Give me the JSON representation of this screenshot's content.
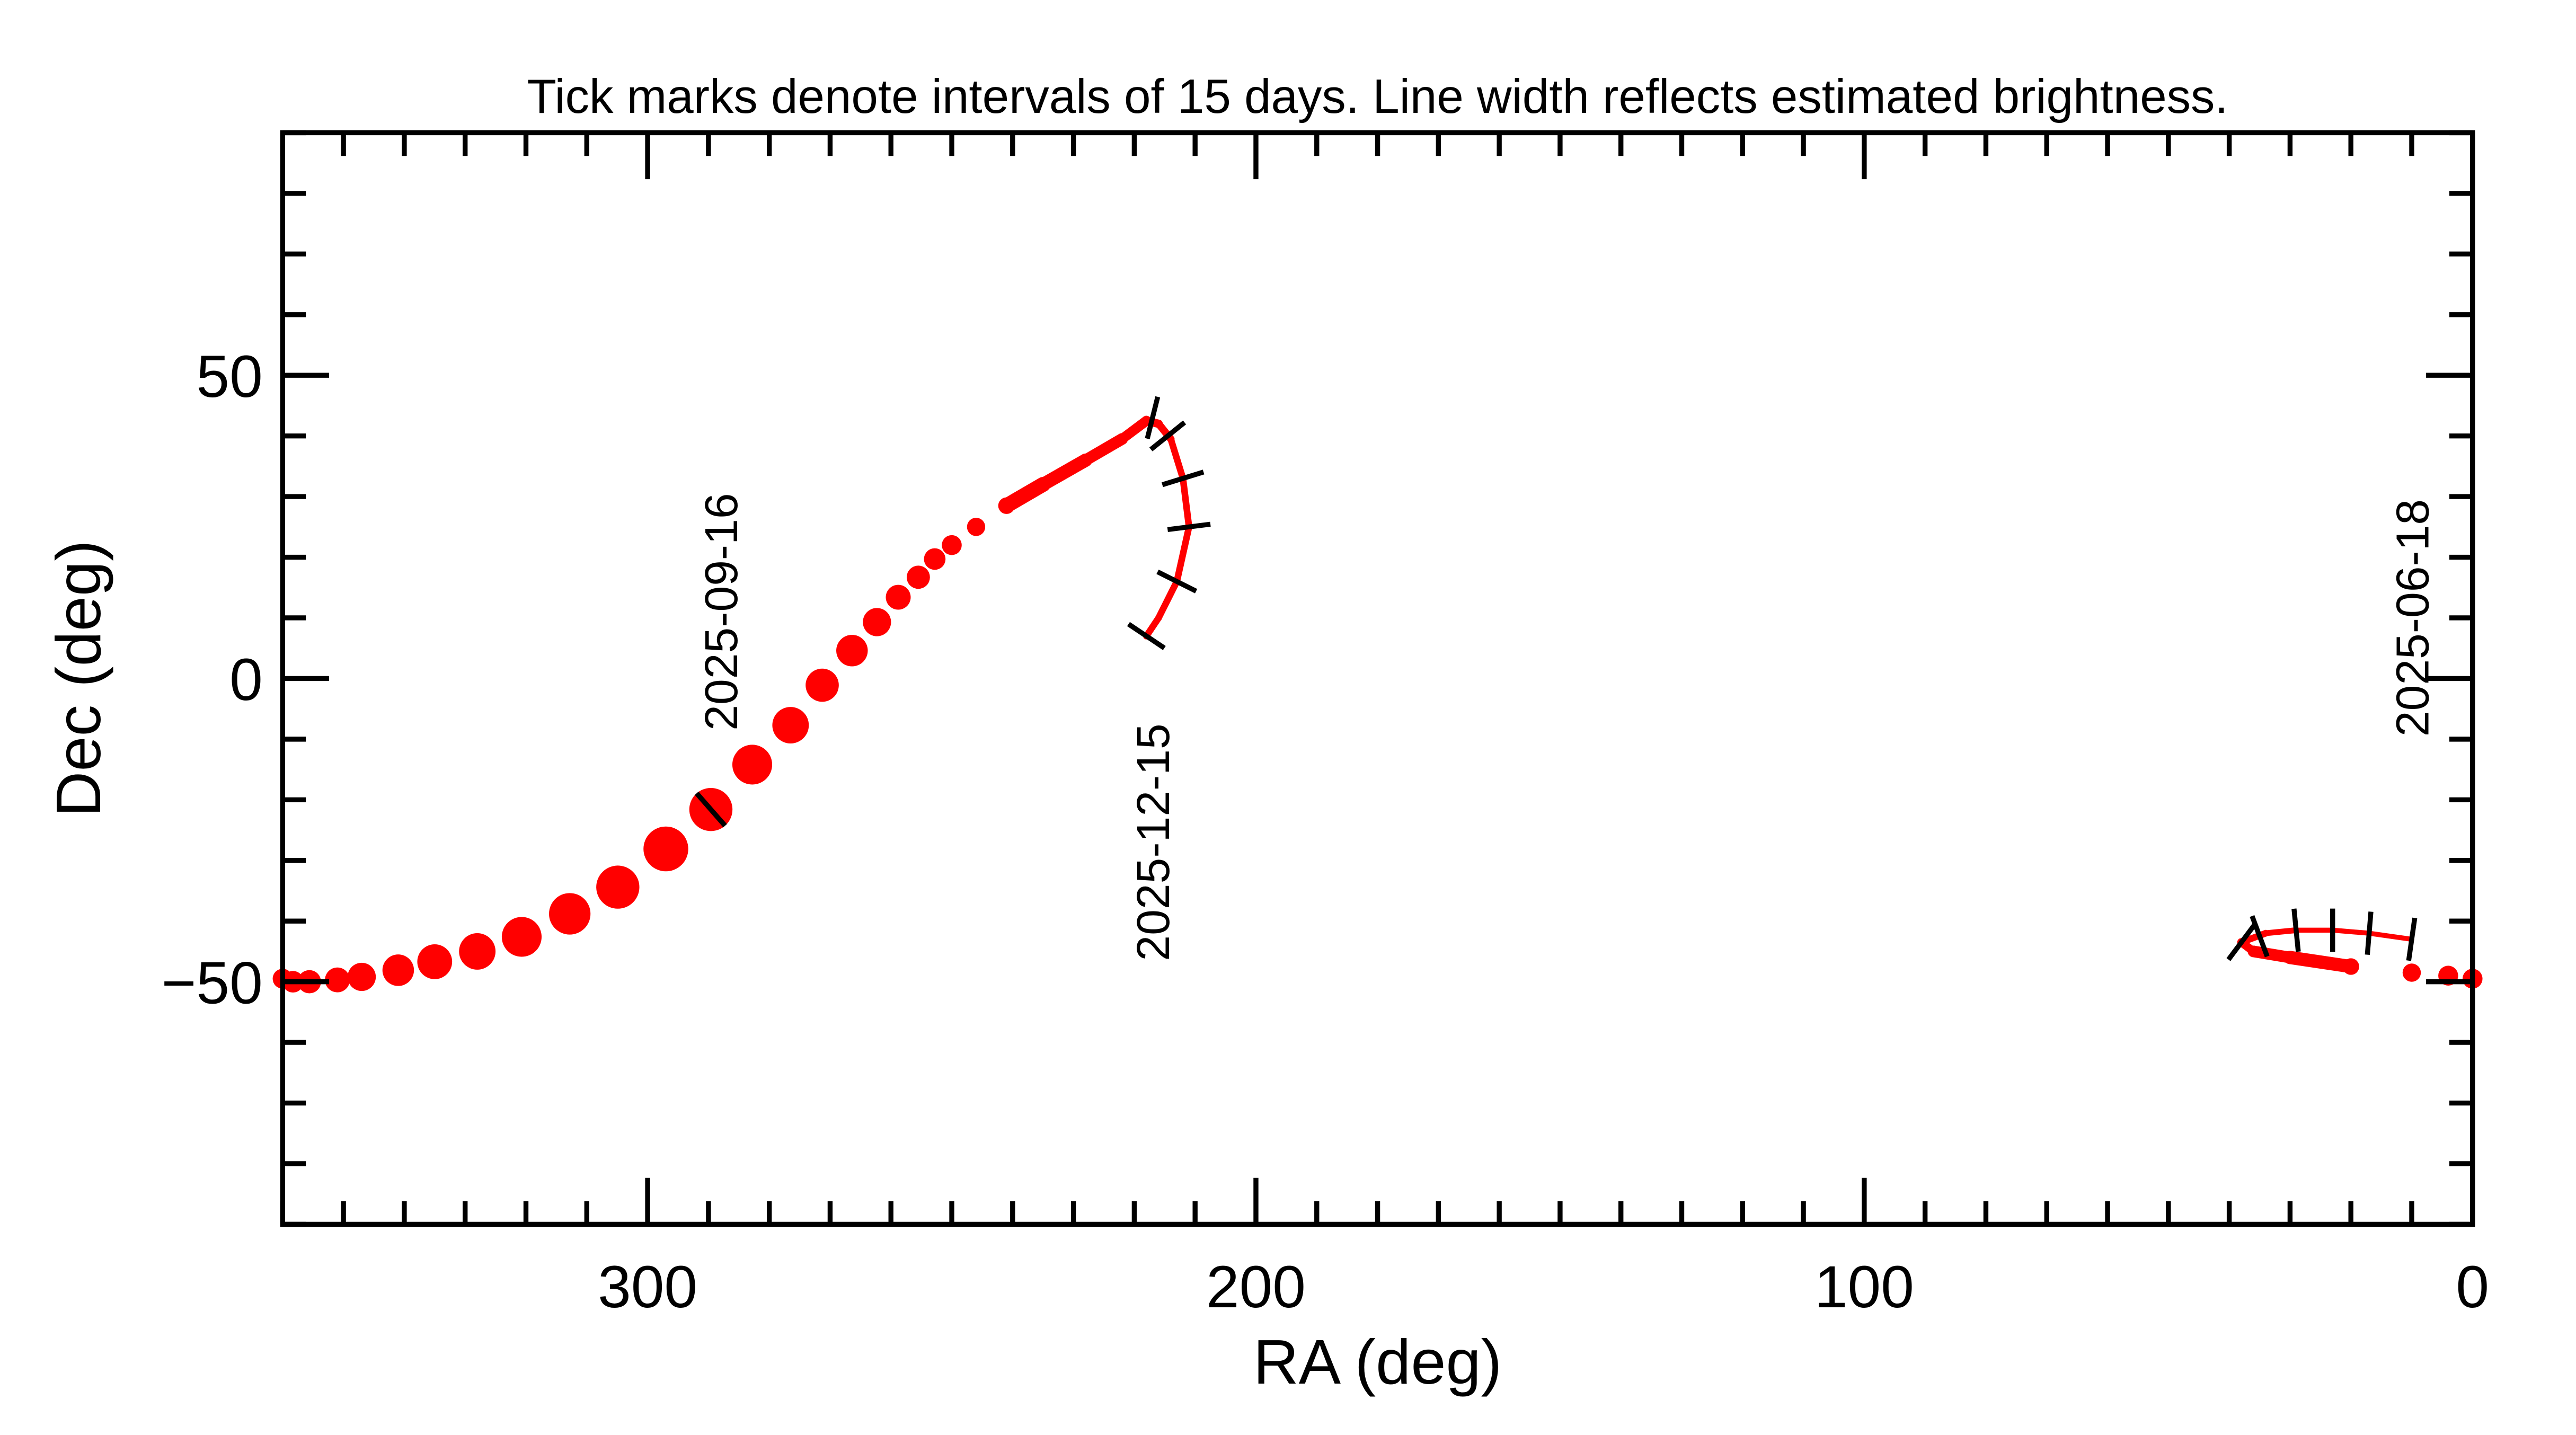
{
  "chart_data": {
    "type": "line",
    "title": "Tick marks denote intervals of 15 days.  Line width reflects estimated brightness.",
    "xlabel": "RA (deg)",
    "ylabel": "Dec (deg)",
    "xlim": [
      360,
      0
    ],
    "ylim": [
      -90,
      90
    ],
    "x_reversed": true,
    "x_ticks": [
      300,
      200,
      100,
      0
    ],
    "x_tick_labels": [
      "300",
      "200",
      "100",
      "0"
    ],
    "y_ticks": [
      50,
      0,
      -50
    ],
    "y_tick_labels": [
      "50",
      "0",
      "−50"
    ],
    "grid": false,
    "line_color": "#ff0000",
    "tick_color": "#000000",
    "track_segments": [
      {
        "points": [
          [
            10,
            -43,
            3
          ],
          [
            17,
            -42,
            3
          ],
          [
            23,
            -41.5,
            3
          ],
          [
            29,
            -41.5,
            3.5
          ],
          [
            34,
            -42,
            4
          ],
          [
            38,
            -43.5,
            5
          ],
          [
            36,
            -45,
            7
          ],
          [
            30,
            -46,
            8
          ],
          [
            20,
            -47.5,
            10
          ],
          [
            10,
            -48.5,
            11
          ],
          [
            4,
            -49,
            12
          ],
          [
            0,
            -49.5,
            12
          ]
        ]
      },
      {
        "points": [
          [
            360,
            -49.5,
            12
          ],
          [
            358.3,
            -50,
            13
          ],
          [
            355.6,
            -50,
            14
          ],
          [
            351,
            -49.7,
            15
          ],
          [
            347,
            -49.2,
            17
          ],
          [
            341,
            -48.1,
            19
          ],
          [
            335,
            -46.7,
            21
          ],
          [
            328,
            -45,
            22
          ],
          [
            320.7,
            -42.6,
            24
          ],
          [
            312.8,
            -38.8,
            25
          ],
          [
            304.9,
            -34.4,
            26
          ],
          [
            297,
            -28.1,
            27
          ],
          [
            289.6,
            -21.6,
            26
          ],
          [
            282.8,
            -14.2,
            24
          ],
          [
            276.5,
            -7.7,
            22
          ],
          [
            271.3,
            -1.1,
            20
          ],
          [
            266.4,
            4.6,
            19
          ],
          [
            262.3,
            9.3,
            17
          ],
          [
            258.8,
            13.4,
            15
          ],
          [
            255.5,
            16.7,
            14
          ],
          [
            252.8,
            19.7,
            13
          ],
          [
            250,
            22,
            12
          ],
          [
            246,
            25,
            11
          ],
          [
            241,
            28.5,
            10
          ],
          [
            235,
            32,
            9
          ],
          [
            228,
            36,
            8
          ],
          [
            222,
            39.5,
            7
          ],
          [
            218,
            42.5,
            6
          ],
          [
            216,
            42,
            5
          ],
          [
            214,
            39.5,
            4.5
          ],
          [
            212,
            33,
            4
          ],
          [
            211,
            25,
            4
          ],
          [
            213,
            16,
            4
          ],
          [
            216,
            10,
            4
          ],
          [
            218,
            7,
            4
          ]
        ]
      }
    ],
    "interval_ticks": [
      [
        10,
        -43
      ],
      [
        17,
        -42
      ],
      [
        23,
        -41.5
      ],
      [
        29,
        -41.5
      ],
      [
        35,
        -42.5
      ],
      [
        38,
        -43.5
      ],
      [
        289.6,
        -21.6
      ],
      [
        217,
        43
      ],
      [
        214.5,
        40
      ],
      [
        212,
        33
      ],
      [
        211,
        25
      ],
      [
        213,
        16
      ],
      [
        218,
        7
      ]
    ],
    "annotations": [
      {
        "text": "2025-06-18",
        "ra": 10,
        "dec": 10
      },
      {
        "text": "2025-09-16",
        "ra": 288,
        "dec": 11
      },
      {
        "text": "2025-12-15",
        "ra": 217,
        "dec": -27
      }
    ]
  }
}
